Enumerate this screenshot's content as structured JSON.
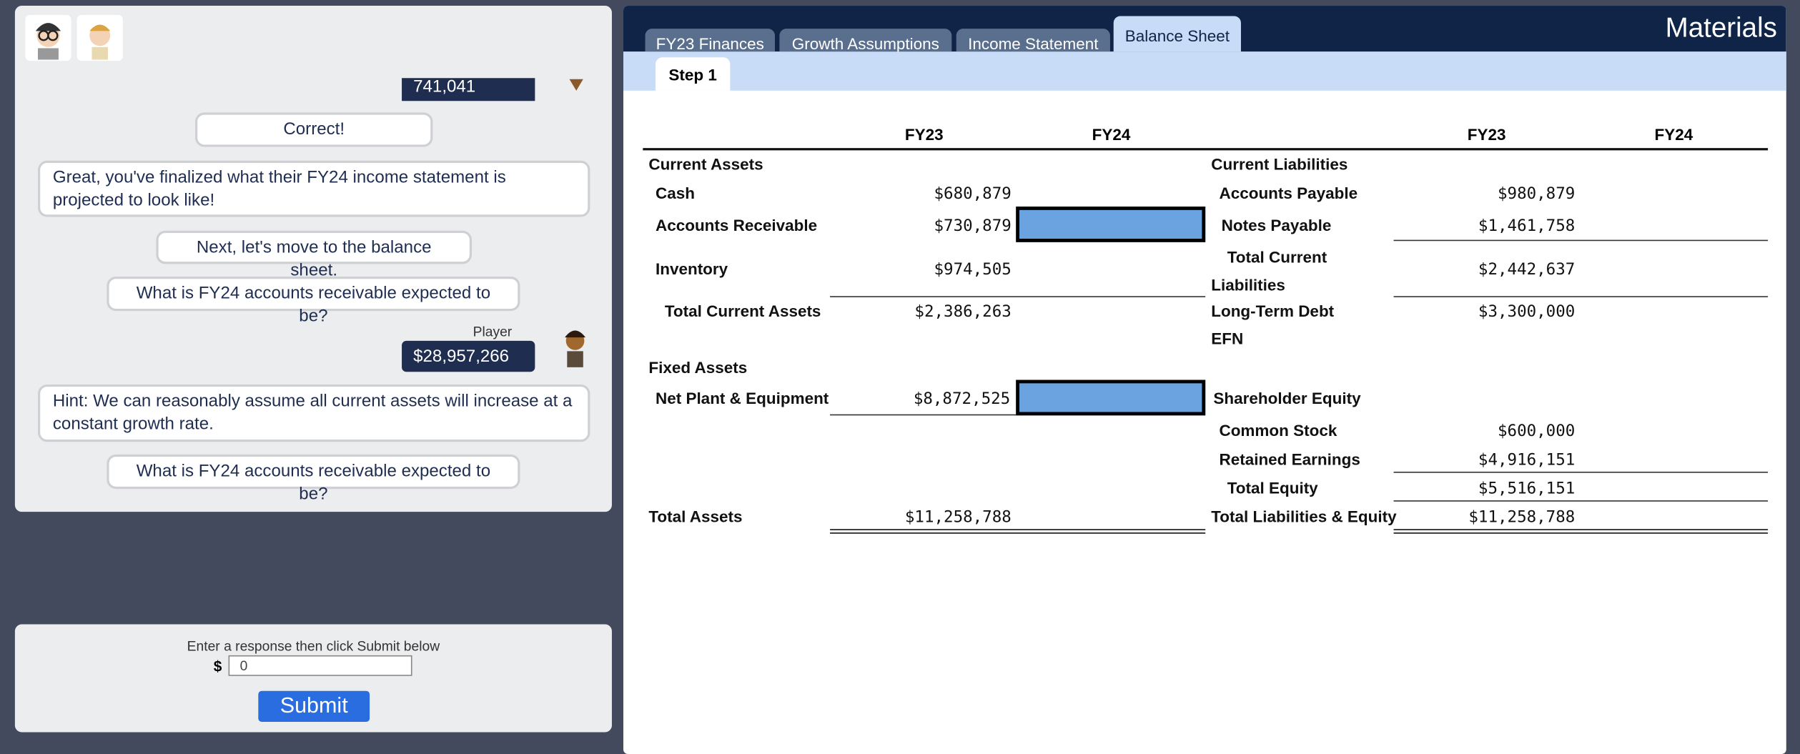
{
  "chat": {
    "messages": [
      {
        "sender": "player",
        "text": "741,041"
      },
      {
        "sender": "bot",
        "text": "Correct!"
      },
      {
        "sender": "bot",
        "text": "Great, you've finalized what their FY24 income statement is projected to look like!"
      },
      {
        "sender": "bot",
        "text": "Next, let's move to the balance sheet."
      },
      {
        "sender": "bot",
        "text": "What is FY24 accounts receivable expected to be?"
      },
      {
        "sender": "player",
        "name": "Player",
        "text": "$28,957,266"
      },
      {
        "sender": "bot",
        "text": "Hint: We can reasonably assume all current assets will increase at a constant growth rate."
      },
      {
        "sender": "bot",
        "text": "What is FY24 accounts receivable expected to be?"
      }
    ]
  },
  "response": {
    "prompt": "Enter a response then click Submit below",
    "currency": "$",
    "value": "0",
    "button": "Submit"
  },
  "materials": {
    "title": "Materials",
    "tabs": [
      "FY23 Finances",
      "Growth Assumptions",
      "Income Statement",
      "Balance Sheet"
    ],
    "active_tab": "Balance Sheet",
    "subtab": "Step 1",
    "columns": [
      "FY23",
      "FY24"
    ],
    "assets": [
      {
        "label": "Current Assets"
      },
      {
        "label": "Cash",
        "fy23": "$680,879"
      },
      {
        "label": "Accounts Receivable",
        "fy23": "$730,879"
      },
      {
        "label": "Inventory",
        "fy23": "$974,505"
      },
      {
        "label": "Total Current Assets",
        "fy23": "$2,386,263"
      },
      {
        "label": "Fixed Assets"
      },
      {
        "label": "Net Plant & Equipment",
        "fy23": "$8,872,525"
      },
      {
        "label": "Total Assets",
        "fy23": "$11,258,788"
      }
    ],
    "liabilities": [
      {
        "label": "Current Liabilities"
      },
      {
        "label": "Accounts Payable",
        "fy23": "$980,879"
      },
      {
        "label": "Notes Payable",
        "fy23": "$1,461,758"
      },
      {
        "label": "Total Current Liabilities",
        "fy23": "$2,442,637"
      },
      {
        "label": "Long-Term Debt",
        "fy23": "$3,300,000"
      },
      {
        "label": "EFN"
      },
      {
        "label": "Shareholder Equity"
      },
      {
        "label": "Common Stock",
        "fy23": "$600,000"
      },
      {
        "label": "Retained Earnings",
        "fy23": "$4,916,151"
      },
      {
        "label": "Total Equity",
        "fy23": "$5,516,151"
      },
      {
        "label": "Total Liabilities & Equity",
        "fy23": "$11,258,788"
      }
    ]
  }
}
